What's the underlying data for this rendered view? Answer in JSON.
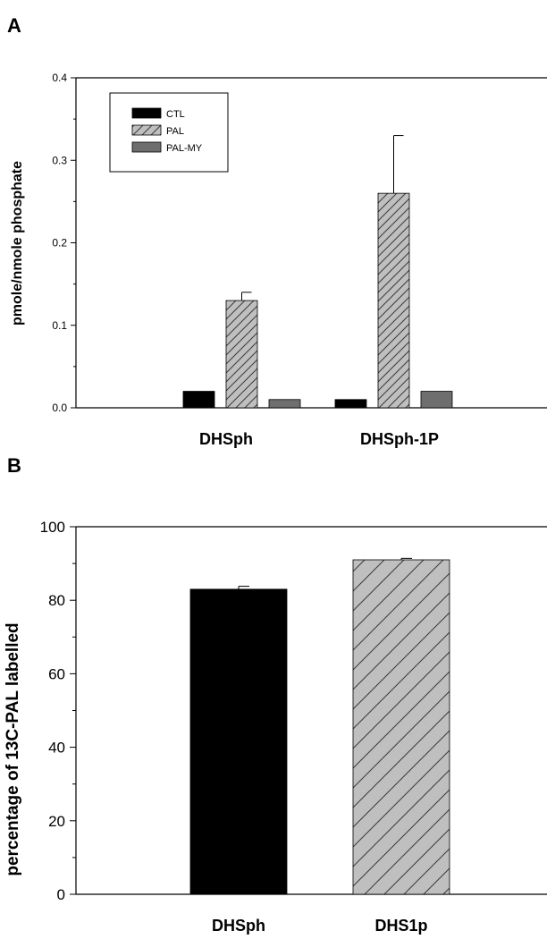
{
  "colors": {
    "CTL": "#000000",
    "PAL": "#bfbfbf",
    "PAL_MY": "#6e6e6e",
    "DHSph_B": "#000000",
    "DHS1p_B": "#bfbfbf"
  },
  "chart_data": [
    {
      "type": "bar",
      "panel": "A",
      "categories": [
        "DHSph",
        "DHSph-1P"
      ],
      "series": [
        {
          "name": "CTL",
          "values": [
            0.02,
            0.01
          ],
          "error": [
            0,
            0
          ],
          "pattern": "solid"
        },
        {
          "name": "PAL",
          "values": [
            0.13,
            0.26
          ],
          "error": [
            0.01,
            0.07
          ],
          "pattern": "hatch"
        },
        {
          "name": "PAL-MY",
          "values": [
            0.01,
            0.02
          ],
          "error": [
            0,
            0
          ],
          "pattern": "solid"
        }
      ],
      "ylabel": "pmole/nmole phosphate",
      "ylim": [
        0,
        0.4
      ],
      "yticks": [
        "0.0",
        "0.1",
        "0.2",
        "0.3",
        "0.4"
      ],
      "legend": "top-left",
      "grid": false
    },
    {
      "type": "bar",
      "panel": "B",
      "categories": [
        "DHSph",
        "DHS1p"
      ],
      "values": [
        83,
        91
      ],
      "error": [
        0.8,
        0.4
      ],
      "ylabel": "percentage of 13C-PAL labelled",
      "ylim": [
        0,
        100
      ],
      "yticks": [
        "0",
        "20",
        "40",
        "60",
        "80",
        "100"
      ],
      "grid": false
    }
  ]
}
